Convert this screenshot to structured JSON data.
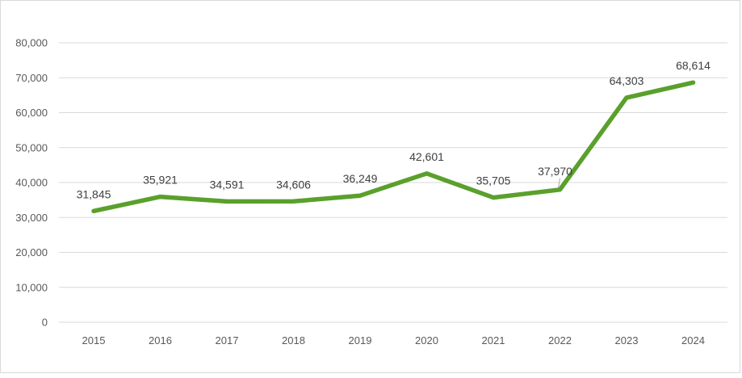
{
  "chart_data": {
    "type": "line",
    "title": "",
    "xlabel": "",
    "ylabel": "",
    "categories": [
      "2015",
      "2016",
      "2017",
      "2018",
      "2019",
      "2020",
      "2021",
      "2022",
      "2023",
      "2024"
    ],
    "series": [
      {
        "values": [
          31845,
          35921,
          34591,
          34606,
          36249,
          42601,
          35705,
          37970,
          64303,
          68614
        ],
        "data_labels": [
          "31,845",
          "35,921",
          "34,591",
          "34,606",
          "36,249",
          "42,601",
          "35,705",
          "37,970",
          "64,303",
          "68,614"
        ],
        "color": "#5aa02c"
      }
    ],
    "ylim": [
      0,
      80000
    ],
    "yticks": [
      0,
      10000,
      20000,
      30000,
      40000,
      50000,
      60000,
      70000,
      80000
    ],
    "ytick_labels": [
      "0",
      "10,000",
      "20,000",
      "30,000",
      "40,000",
      "50,000",
      "60,000",
      "70,000",
      "80,000"
    ],
    "grid": true,
    "legend": "none",
    "gridline_color": "#d9d9d9",
    "leader_line_color": "#a6a6a6"
  }
}
